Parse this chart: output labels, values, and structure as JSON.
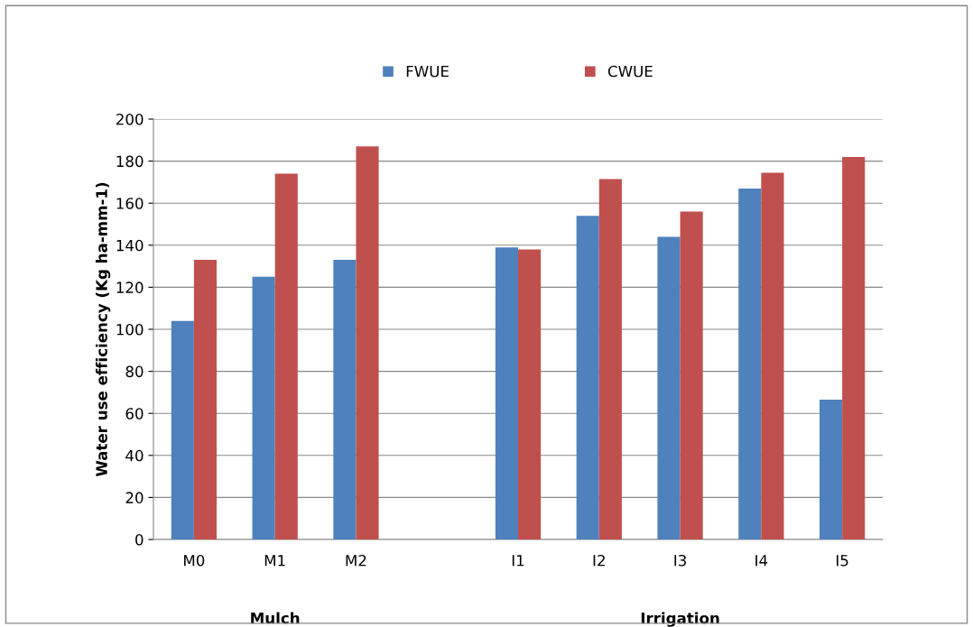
{
  "chart_data": {
    "type": "bar",
    "ylabel": "Water use efficiency (Kg ha-mm-1)",
    "categories": [
      "M0",
      "M1",
      "M2",
      null,
      "I1",
      "I2",
      "I3",
      "I4",
      "I5"
    ],
    "series": [
      {
        "name": "FWUE",
        "color": "#4f81bd",
        "values": [
          104,
          125,
          133,
          null,
          139,
          154,
          144,
          167,
          66.5
        ]
      },
      {
        "name": "CWUE",
        "color": "#c0504d",
        "values": [
          133,
          174,
          187,
          null,
          138,
          171.5,
          156,
          174.5,
          182
        ]
      }
    ],
    "annotations": [
      "Mulch",
      "Irrigation"
    ],
    "ylim": [
      0,
      200
    ],
    "yticks": [
      0,
      20,
      40,
      60,
      80,
      100,
      120,
      140,
      160,
      180,
      200
    ],
    "grid": "y",
    "legend": "top"
  }
}
